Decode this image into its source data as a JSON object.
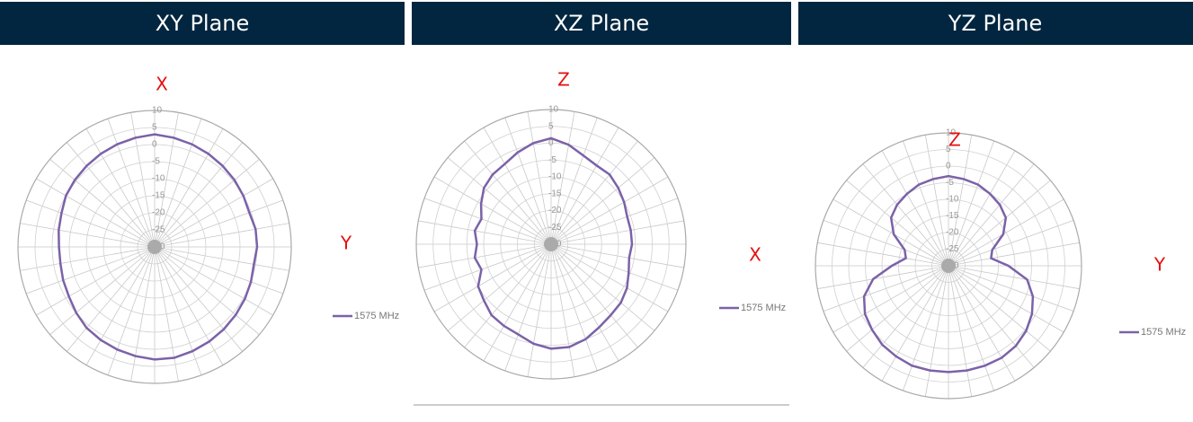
{
  "chart_data": [
    {
      "type": "polar",
      "title": "XY Plane",
      "top_label": "X",
      "right_label": "Y",
      "rlim": [
        -30,
        10
      ],
      "rticks": [
        10,
        5,
        0,
        -5,
        -10,
        -15,
        -20,
        -25,
        -30
      ],
      "grid": true,
      "series": [
        {
          "name": "1575 MHz",
          "color": "#7b62a8",
          "values": [
            3,
            2.5,
            2,
            1.5,
            1,
            0.5,
            0,
            -0.5,
            0,
            0,
            -0.5,
            0,
            0.5,
            1,
            1.5,
            2,
            2.5,
            3,
            3,
            2.5,
            2,
            1.5,
            1,
            0,
            -1,
            -1.5,
            -2,
            -2,
            -1.5,
            -1,
            0,
            0.5,
            1,
            1.5,
            2,
            2.5
          ]
        }
      ]
    },
    {
      "type": "polar",
      "title": "XZ Plane",
      "top_label": "Z",
      "right_label": "X",
      "rlim": [
        -30,
        10
      ],
      "rticks": [
        10,
        5,
        0,
        -5,
        -10,
        -15,
        -20,
        -25,
        -30
      ],
      "grid": true,
      "series": [
        {
          "name": "1575 MHz",
          "color": "#7b62a8",
          "values": [
            1.5,
            0,
            -2,
            -3,
            -3,
            -4,
            -5,
            -6,
            -6,
            -6,
            -6.5,
            -5.5,
            -4,
            -3,
            -2.5,
            -1.5,
            0,
            1,
            1,
            0,
            -1.5,
            -2,
            -2.5,
            -4,
            -5,
            -8,
            -7,
            -8,
            -7,
            -8,
            -6,
            -4,
            -3,
            -2.5,
            -1,
            0.5
          ]
        }
      ]
    },
    {
      "type": "polar",
      "title": "YZ Plane",
      "top_label": "Z",
      "right_label": "Y",
      "rlim": [
        -30,
        10
      ],
      "rticks": [
        10,
        5,
        0,
        -5,
        -10,
        -15,
        -20,
        -25,
        -30
      ],
      "grid": true,
      "series": [
        {
          "name": "1575 MHz",
          "color": "#7b62a8",
          "values": [
            -3,
            -3.5,
            -4,
            -5,
            -6,
            -7.5,
            -11,
            -16,
            -17,
            -12,
            -6,
            -3,
            -1,
            0.5,
            1.5,
            2,
            2,
            2,
            2,
            2,
            2,
            1.5,
            1,
            0,
            -1,
            -3,
            -7,
            -13,
            -17,
            -16,
            -11,
            -7.5,
            -6,
            -5,
            -4,
            -3.5
          ]
        }
      ]
    }
  ]
}
